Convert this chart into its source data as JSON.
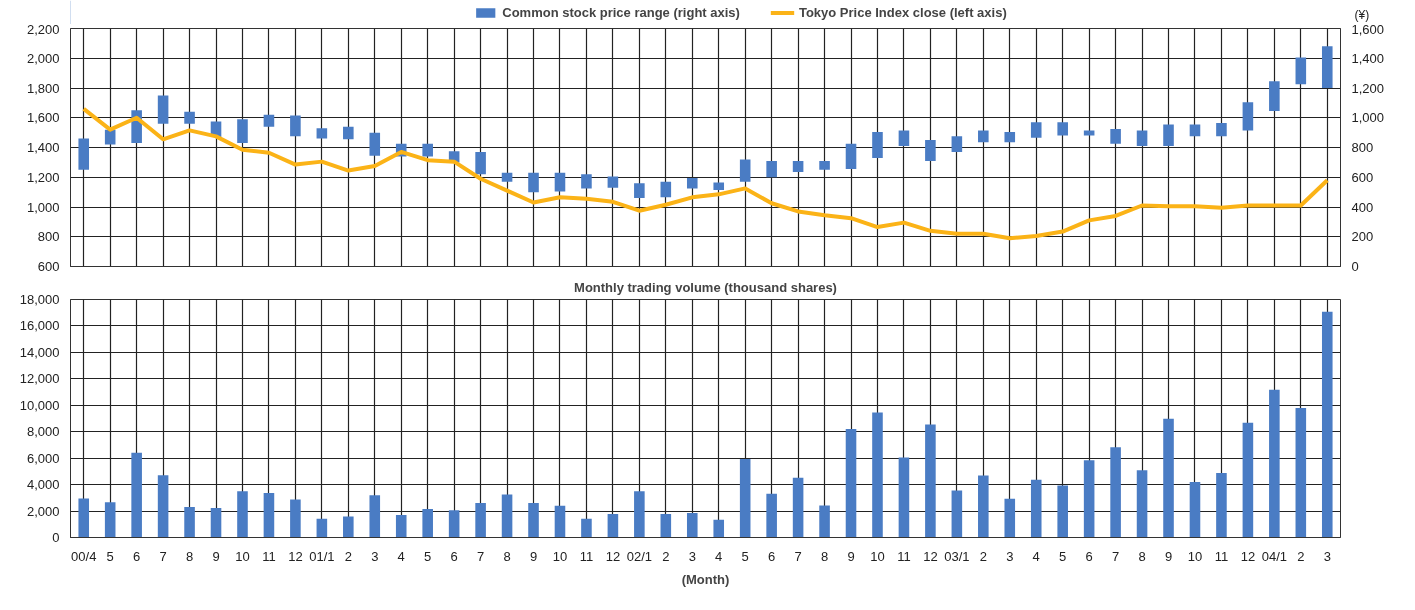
{
  "chart_data": [
    {
      "type": "line",
      "categories": [
        null,
        null,
        null,
        null,
        null,
        null,
        null,
        null,
        null,
        null,
        null,
        null,
        null,
        null,
        null,
        null,
        null,
        null,
        null,
        null,
        null,
        null,
        null,
        null,
        null,
        null,
        null,
        null,
        null,
        null,
        null,
        null,
        null,
        null,
        null,
        null,
        null,
        null,
        null,
        null,
        null,
        null,
        null,
        null,
        null,
        null,
        null,
        null
      ],
      "series": [
        {
          "name": "Common stock price range (right axis)",
          "type": "bar",
          "axis": "y2",
          "color": "#4a7cc4",
          "base": [
            650,
            820,
            830,
            960,
            960,
            870,
            830,
            940,
            875,
            860,
            855,
            745,
            740,
            740,
            700,
            620,
            570,
            500,
            505,
            525,
            530,
            460,
            465,
            525,
            515,
            570,
            600,
            635,
            650,
            655,
            730,
            810,
            710,
            770,
            835,
            835,
            865,
            880,
            880,
            825,
            810,
            810,
            875,
            875,
            915,
            1045,
            1225,
            1200
          ],
          "values": [
            210,
            100,
            220,
            190,
            80,
            105,
            160,
            80,
            140,
            70,
            85,
            155,
            85,
            85,
            75,
            150,
            60,
            130,
            125,
            95,
            75,
            100,
            105,
            70,
            50,
            150,
            110,
            75,
            60,
            170,
            175,
            105,
            140,
            105,
            80,
            70,
            105,
            90,
            35,
            100,
            105,
            145,
            80,
            90,
            190,
            200,
            180,
            280
          ]
        },
        {
          "name": "Tokyo Price Index close (left axis)",
          "type": "line",
          "color": "#fbb317",
          "values": [
            1660,
            1520,
            1600,
            1455,
            1515,
            1475,
            1385,
            1365,
            1285,
            1305,
            1245,
            1275,
            1370,
            1315,
            1305,
            1190,
            1110,
            1030,
            1065,
            1055,
            1035,
            975,
            1015,
            1065,
            1085,
            1125,
            1025,
            970,
            945,
            925,
            865,
            895,
            840,
            820,
            820,
            790,
            805,
            835,
            910,
            940,
            1010,
            1005,
            1005,
            995,
            1010,
            1010,
            1010,
            1180
          ]
        }
      ],
      "ylim": [
        600,
        2200
      ],
      "yticks": [
        {
          "value": 600,
          "label": "600"
        },
        {
          "value": 800,
          "label": "800"
        },
        {
          "value": 1000,
          "label": "1,000"
        },
        {
          "value": 1200,
          "label": "1,200"
        },
        {
          "value": 1400,
          "label": "1,400"
        },
        {
          "value": 1600,
          "label": "1,600"
        },
        {
          "value": 1800,
          "label": "1,800"
        },
        {
          "value": 2000,
          "label": "2,000"
        },
        {
          "value": 2200,
          "label": "2,200"
        }
      ],
      "y2lim": [
        0,
        1600
      ],
      "y2ticks": [
        0,
        200,
        400,
        600,
        800,
        {
          "value": 1000,
          "label": "1,000"
        },
        {
          "value": 1200,
          "label": "1,200"
        },
        {
          "value": 1400,
          "label": "1,400"
        },
        {
          "value": 1600,
          "label": "1,600"
        }
      ],
      "annotations": [
        "(¥)"
      ],
      "grid": true,
      "legend": "top",
      "tick_labels": "y",
      "line_style": "solid",
      "marker": "none"
    },
    {
      "type": "bar",
      "title": "Monthly trading volume (thousand shares)",
      "xlabel": "(Month)",
      "categories": [
        "00/4",
        "5",
        "6",
        "7",
        "8",
        "9",
        "10",
        "11",
        "12",
        "01/1",
        "2",
        "3",
        "4",
        "5",
        "6",
        "7",
        "8",
        "9",
        "10",
        "11",
        "12",
        "02/1",
        "2",
        "3",
        "4",
        "5",
        "6",
        "7",
        "8",
        "9",
        "10",
        "11",
        "12",
        "03/1",
        "2",
        "3",
        "4",
        "5",
        "6",
        "7",
        "8",
        "9",
        "10",
        "11",
        "12",
        "04/1",
        "2",
        "3"
      ],
      "series": [
        {
          "color": "#4a7cc4",
          "values": [
            2950,
            2670,
            6410,
            4700,
            2300,
            2230,
            3500,
            3360,
            2880,
            1410,
            1580,
            3190,
            1710,
            2160,
            2060,
            2610,
            3260,
            2610,
            2400,
            1410,
            1780,
            3500,
            1780,
            1850,
            1350,
            5940,
            3310,
            4510,
            2420,
            8200,
            9460,
            6050,
            8540,
            3550,
            4680,
            2940,
            4370,
            3930,
            5840,
            6830,
            5090,
            8980,
            4200,
            4880,
            8680,
            11170,
            9800,
            17080
          ]
        }
      ],
      "ylim": [
        0,
        18000
      ],
      "yticks": [
        0,
        {
          "value": 2000,
          "label": "2,000"
        },
        {
          "value": 4000,
          "label": "4,000"
        },
        {
          "value": 6000,
          "label": "6,000"
        },
        {
          "value": 8000,
          "label": "8,000"
        },
        {
          "value": 10000,
          "label": "10,000"
        },
        {
          "value": 12000,
          "label": "12,000"
        },
        {
          "value": 14000,
          "label": "14,000"
        },
        {
          "value": 16000,
          "label": "16,000"
        },
        {
          "value": 18000,
          "label": "18,000"
        }
      ],
      "grid": true
    }
  ]
}
